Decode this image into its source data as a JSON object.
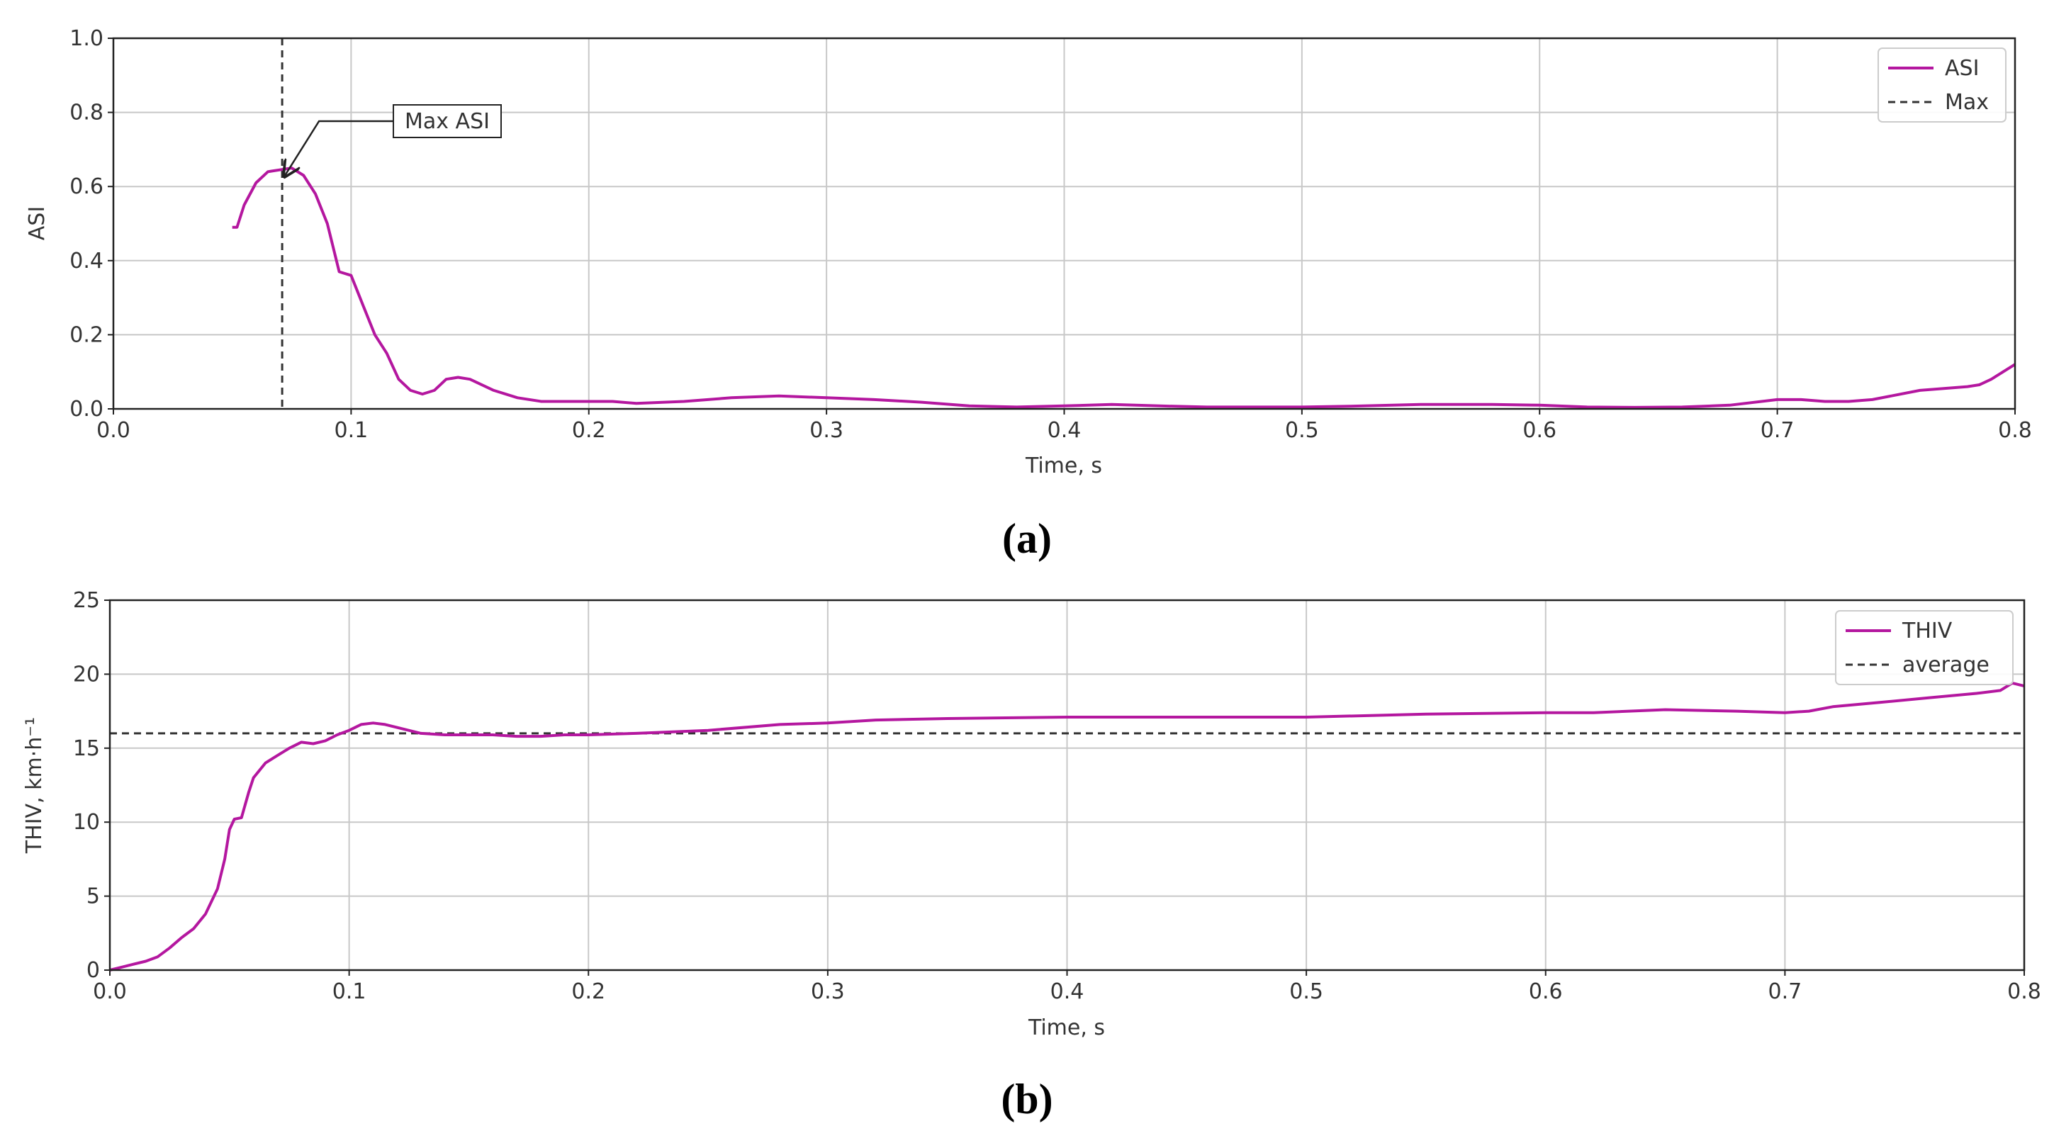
{
  "chart_data": [
    {
      "type": "line",
      "panel_label": "(a)",
      "xlabel": "Time, s",
      "ylabel": "ASI",
      "xlim": [
        0.0,
        0.8
      ],
      "ylim": [
        0.0,
        1.0
      ],
      "xticks": [
        "0.0",
        "0.1",
        "0.2",
        "0.3",
        "0.4",
        "0.5",
        "0.6",
        "0.7",
        "0.8"
      ],
      "yticks": [
        "0.0",
        "0.2",
        "0.4",
        "0.6",
        "0.8",
        "1.0"
      ],
      "grid": true,
      "legend_position": "top-right",
      "series": [
        {
          "name": "ASI",
          "color": "#b4179f",
          "style": "solid",
          "x": [
            0.05,
            0.052,
            0.055,
            0.06,
            0.065,
            0.07,
            0.075,
            0.08,
            0.085,
            0.09,
            0.095,
            0.1,
            0.105,
            0.11,
            0.115,
            0.12,
            0.125,
            0.13,
            0.135,
            0.14,
            0.145,
            0.15,
            0.16,
            0.17,
            0.18,
            0.19,
            0.2,
            0.21,
            0.22,
            0.24,
            0.26,
            0.28,
            0.3,
            0.32,
            0.34,
            0.36,
            0.38,
            0.4,
            0.42,
            0.44,
            0.46,
            0.48,
            0.5,
            0.52,
            0.55,
            0.58,
            0.6,
            0.62,
            0.64,
            0.66,
            0.68,
            0.7,
            0.71,
            0.72,
            0.73,
            0.74,
            0.76,
            0.78,
            0.785,
            0.79,
            0.795,
            0.8
          ],
          "y": [
            0.49,
            0.49,
            0.55,
            0.61,
            0.64,
            0.645,
            0.65,
            0.63,
            0.58,
            0.5,
            0.37,
            0.36,
            0.28,
            0.2,
            0.15,
            0.08,
            0.05,
            0.04,
            0.05,
            0.08,
            0.085,
            0.08,
            0.05,
            0.03,
            0.02,
            0.02,
            0.02,
            0.02,
            0.015,
            0.02,
            0.03,
            0.035,
            0.03,
            0.025,
            0.018,
            0.008,
            0.005,
            0.008,
            0.012,
            0.008,
            0.005,
            0.005,
            0.005,
            0.007,
            0.012,
            0.012,
            0.01,
            0.005,
            0.004,
            0.005,
            0.01,
            0.025,
            0.025,
            0.02,
            0.02,
            0.025,
            0.05,
            0.06,
            0.065,
            0.08,
            0.1,
            0.12
          ]
        },
        {
          "name": "Max",
          "color": "#333333",
          "style": "dashed",
          "orientation": "vertical",
          "x_value": 0.071
        }
      ],
      "annotations": [
        {
          "text": "Max ASI",
          "x": 0.071,
          "y": 0.65
        }
      ]
    },
    {
      "type": "line",
      "panel_label": "(b)",
      "xlabel": "Time, s",
      "ylabel": "THIV, km·h⁻¹",
      "xlim": [
        0.0,
        0.8
      ],
      "ylim": [
        0,
        25
      ],
      "xticks": [
        "0.0",
        "0.1",
        "0.2",
        "0.3",
        "0.4",
        "0.5",
        "0.6",
        "0.7",
        "0.8"
      ],
      "yticks": [
        "0",
        "5",
        "10",
        "15",
        "20",
        "25"
      ],
      "grid": true,
      "legend_position": "top-right",
      "series": [
        {
          "name": "THIV",
          "color": "#b4179f",
          "style": "solid",
          "x": [
            0.0,
            0.005,
            0.01,
            0.015,
            0.02,
            0.025,
            0.03,
            0.035,
            0.04,
            0.045,
            0.048,
            0.05,
            0.052,
            0.055,
            0.058,
            0.06,
            0.065,
            0.07,
            0.075,
            0.08,
            0.085,
            0.09,
            0.095,
            0.1,
            0.105,
            0.11,
            0.115,
            0.12,
            0.13,
            0.14,
            0.15,
            0.16,
            0.17,
            0.18,
            0.19,
            0.2,
            0.22,
            0.25,
            0.28,
            0.3,
            0.32,
            0.35,
            0.4,
            0.45,
            0.5,
            0.55,
            0.6,
            0.62,
            0.65,
            0.68,
            0.7,
            0.71,
            0.72,
            0.74,
            0.76,
            0.78,
            0.79,
            0.795,
            0.8
          ],
          "y": [
            0,
            0.2,
            0.4,
            0.6,
            0.9,
            1.5,
            2.2,
            2.8,
            3.8,
            5.5,
            7.5,
            9.5,
            10.2,
            10.3,
            12.0,
            13.0,
            14.0,
            14.5,
            15.0,
            15.4,
            15.3,
            15.5,
            15.9,
            16.2,
            16.6,
            16.7,
            16.6,
            16.4,
            16.0,
            15.9,
            15.9,
            15.9,
            15.8,
            15.8,
            15.9,
            15.9,
            16.0,
            16.2,
            16.6,
            16.7,
            16.9,
            17.0,
            17.1,
            17.1,
            17.1,
            17.3,
            17.4,
            17.4,
            17.6,
            17.5,
            17.4,
            17.5,
            17.8,
            18.1,
            18.4,
            18.7,
            18.9,
            19.4,
            19.2
          ]
        },
        {
          "name": "average",
          "color": "#333333",
          "style": "dashed",
          "orientation": "horizontal",
          "y_value": 16
        }
      ]
    }
  ]
}
